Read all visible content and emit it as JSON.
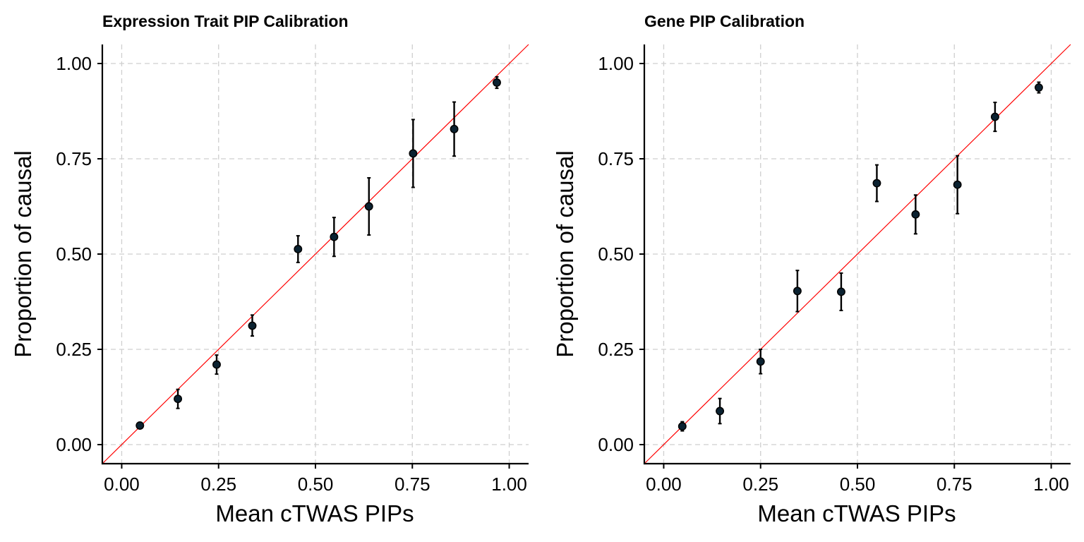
{
  "chart_data": [
    {
      "type": "scatter",
      "title": "Expression Trait PIP Calibration",
      "xlabel": "Mean cTWAS PIPs",
      "ylabel": "Proportion of causal",
      "xlim": [
        -0.05,
        1.05
      ],
      "ylim": [
        -0.05,
        1.05
      ],
      "xticks": [
        0,
        0.25,
        0.5,
        0.75,
        1
      ],
      "yticks": [
        0,
        0.25,
        0.5,
        0.75,
        1
      ],
      "xtick_labels": [
        "0.00",
        "0.25",
        "0.50",
        "0.75",
        "1.00"
      ],
      "ytick_labels": [
        "0.00",
        "0.25",
        "0.50",
        "0.75",
        "1.00"
      ],
      "grid": true,
      "reference_line": {
        "slope": 1,
        "intercept": 0,
        "color": "#ff0000"
      },
      "points": [
        {
          "x": 0.047,
          "y": 0.05,
          "lo": 0.045,
          "hi": 0.055
        },
        {
          "x": 0.145,
          "y": 0.12,
          "lo": 0.095,
          "hi": 0.145
        },
        {
          "x": 0.245,
          "y": 0.21,
          "lo": 0.185,
          "hi": 0.235
        },
        {
          "x": 0.337,
          "y": 0.312,
          "lo": 0.285,
          "hi": 0.34
        },
        {
          "x": 0.455,
          "y": 0.513,
          "lo": 0.478,
          "hi": 0.548
        },
        {
          "x": 0.548,
          "y": 0.545,
          "lo": 0.494,
          "hi": 0.596
        },
        {
          "x": 0.638,
          "y": 0.625,
          "lo": 0.55,
          "hi": 0.7
        },
        {
          "x": 0.752,
          "y": 0.764,
          "lo": 0.675,
          "hi": 0.853
        },
        {
          "x": 0.858,
          "y": 0.828,
          "lo": 0.757,
          "hi": 0.899
        },
        {
          "x": 0.968,
          "y": 0.95,
          "lo": 0.935,
          "hi": 0.965
        }
      ],
      "colors": {
        "point": "#0b2231",
        "errorbar": "#000000"
      }
    },
    {
      "type": "scatter",
      "title": "Gene PIP Calibration",
      "xlabel": "Mean cTWAS PIPs",
      "ylabel": "Proportion of causal",
      "xlim": [
        -0.05,
        1.05
      ],
      "ylim": [
        -0.05,
        1.05
      ],
      "xticks": [
        0,
        0.25,
        0.5,
        0.75,
        1
      ],
      "yticks": [
        0,
        0.25,
        0.5,
        0.75,
        1
      ],
      "xtick_labels": [
        "0.00",
        "0.25",
        "0.50",
        "0.75",
        "1.00"
      ],
      "ytick_labels": [
        "0.00",
        "0.25",
        "0.50",
        "0.75",
        "1.00"
      ],
      "grid": true,
      "reference_line": {
        "slope": 1,
        "intercept": 0,
        "color": "#ff0000"
      },
      "points": [
        {
          "x": 0.048,
          "y": 0.048,
          "lo": 0.036,
          "hi": 0.06
        },
        {
          "x": 0.145,
          "y": 0.088,
          "lo": 0.055,
          "hi": 0.121
        },
        {
          "x": 0.25,
          "y": 0.218,
          "lo": 0.186,
          "hi": 0.25
        },
        {
          "x": 0.345,
          "y": 0.403,
          "lo": 0.349,
          "hi": 0.457
        },
        {
          "x": 0.458,
          "y": 0.401,
          "lo": 0.352,
          "hi": 0.45
        },
        {
          "x": 0.55,
          "y": 0.686,
          "lo": 0.638,
          "hi": 0.734
        },
        {
          "x": 0.65,
          "y": 0.604,
          "lo": 0.553,
          "hi": 0.655
        },
        {
          "x": 0.758,
          "y": 0.682,
          "lo": 0.606,
          "hi": 0.758
        },
        {
          "x": 0.855,
          "y": 0.86,
          "lo": 0.822,
          "hi": 0.898
        },
        {
          "x": 0.968,
          "y": 0.937,
          "lo": 0.923,
          "hi": 0.951
        }
      ],
      "colors": {
        "point": "#0b2231",
        "errorbar": "#000000"
      }
    }
  ]
}
